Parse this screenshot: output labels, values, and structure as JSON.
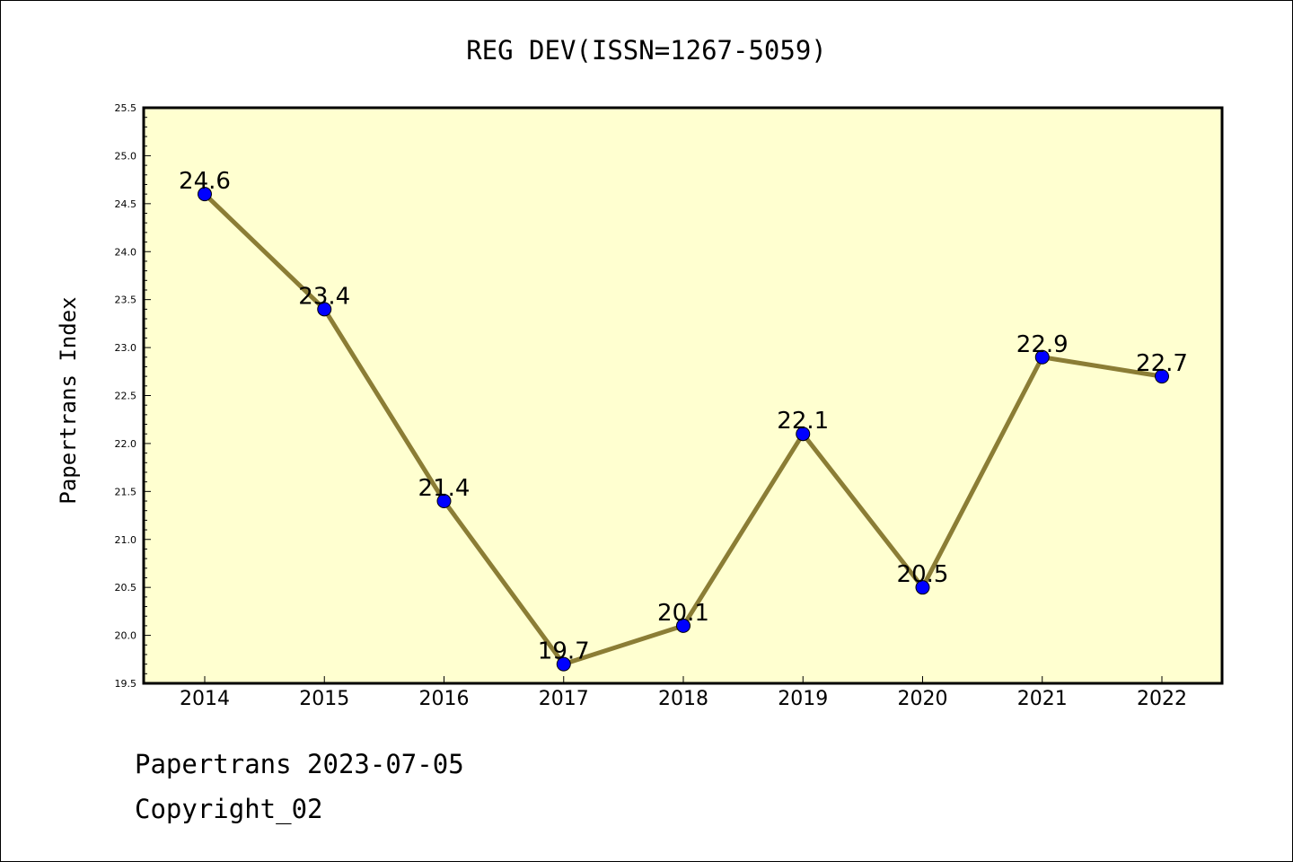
{
  "chart_data": {
    "type": "line",
    "title": "REG DEV(ISSN=1267-5059)",
    "xlabel": "",
    "ylabel": "Papertrans Index",
    "categories": [
      "2014",
      "2015",
      "2016",
      "2017",
      "2018",
      "2019",
      "2020",
      "2021",
      "2022"
    ],
    "series": [
      {
        "values": [
          24.6,
          23.4,
          21.4,
          19.7,
          20.1,
          22.1,
          20.5,
          22.9,
          22.7
        ],
        "data_labels": [
          "24.6",
          "23.4",
          "21.4",
          "19.7",
          "20.1",
          "22.1",
          "20.5",
          "22.9",
          "22.7"
        ]
      }
    ],
    "ylim": [
      19.5,
      25.5
    ],
    "yticks": [
      "19.5",
      "20.0",
      "20.5",
      "21.0",
      "21.5",
      "22.0",
      "22.5",
      "23.0",
      "23.5",
      "24.0",
      "24.5",
      "25.0",
      "25.5"
    ],
    "grid": false,
    "legend": "none",
    "colors": {
      "plot_background": "#ffffd0",
      "line": "#8b7d35",
      "marker_fill": "#0000ff",
      "marker_edge": "#000000",
      "frame": "#000000"
    }
  },
  "footer": {
    "line1": "Papertrans 2023-07-05",
    "line2": "Copyright_02"
  }
}
